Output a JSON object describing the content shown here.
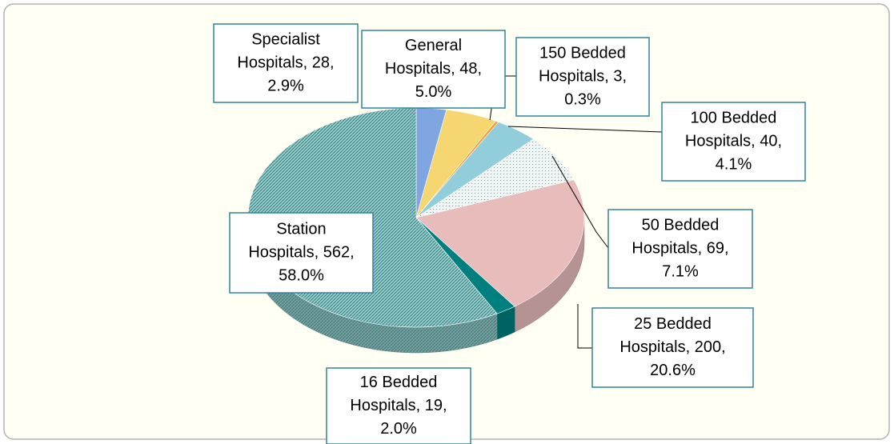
{
  "chart_data": {
    "type": "pie3d",
    "values": [
      28,
      48,
      3,
      40,
      69,
      200,
      19,
      562
    ],
    "value_labels": [
      [
        "Specialist",
        "Hospitals, 28,",
        "2.9%"
      ],
      [
        "General",
        "Hospitals, 48,",
        "5.0%"
      ],
      [
        "150 Bedded",
        "Hospitals, 3,",
        "0.3%"
      ],
      [
        "100 Bedded",
        "Hospitals, 40,",
        "4.1%"
      ],
      [
        "50 Bedded",
        "Hospitals, 69,",
        "7.1%"
      ],
      [
        "25 Bedded",
        "Hospitals, 200,",
        "20.6%"
      ],
      [
        "16 Bedded",
        "Hospitals, 19,",
        "2.0%"
      ],
      [
        "Station",
        "Hospitals, 562,",
        "58.0%"
      ]
    ],
    "colors": [
      "#7fa6e0",
      "#f5d670",
      "#f0a23c",
      "#92cddc",
      "#eef7f5",
      "#e9bcbc",
      "#007f7f",
      "#8fd0cf"
    ]
  }
}
